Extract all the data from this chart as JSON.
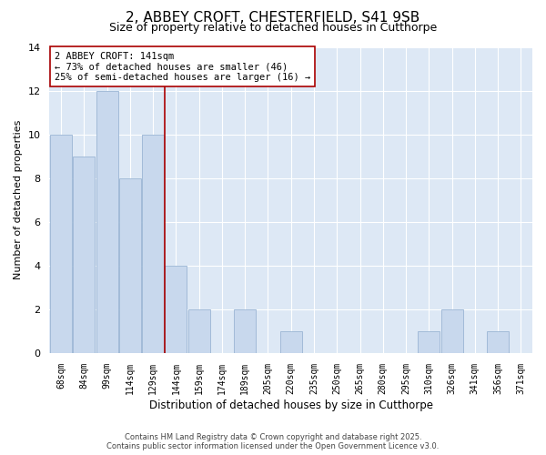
{
  "title": "2, ABBEY CROFT, CHESTERFIELD, S41 9SB",
  "subtitle": "Size of property relative to detached houses in Cutthorpe",
  "xlabel": "Distribution of detached houses by size in Cutthorpe",
  "ylabel": "Number of detached properties",
  "bar_labels": [
    "68sqm",
    "84sqm",
    "99sqm",
    "114sqm",
    "129sqm",
    "144sqm",
    "159sqm",
    "174sqm",
    "189sqm",
    "205sqm",
    "220sqm",
    "235sqm",
    "250sqm",
    "265sqm",
    "280sqm",
    "295sqm",
    "310sqm",
    "326sqm",
    "341sqm",
    "356sqm",
    "371sqm"
  ],
  "bar_values": [
    10,
    9,
    12,
    8,
    10,
    4,
    2,
    0,
    2,
    0,
    1,
    0,
    0,
    0,
    0,
    0,
    1,
    2,
    0,
    1,
    0
  ],
  "bar_color": "#c8d8ed",
  "bar_edge_color": "#9ab5d4",
  "vline_x": 4.5,
  "vline_color": "#aa0000",
  "annotation_text": "2 ABBEY CROFT: 141sqm\n← 73% of detached houses are smaller (46)\n25% of semi-detached houses are larger (16) →",
  "annotation_box_color": "white",
  "annotation_box_edge": "#aa0000",
  "ylim": [
    0,
    14
  ],
  "yticks": [
    0,
    2,
    4,
    6,
    8,
    10,
    12,
    14
  ],
  "bg_color": "#dde8f5",
  "grid_color": "#c0cfe0",
  "footer1": "Contains HM Land Registry data © Crown copyright and database right 2025.",
  "footer2": "Contains public sector information licensed under the Open Government Licence v3.0.",
  "title_fontsize": 11,
  "subtitle_fontsize": 9,
  "annotation_fontsize": 7.5,
  "ylabel_fontsize": 8,
  "xlabel_fontsize": 8.5
}
